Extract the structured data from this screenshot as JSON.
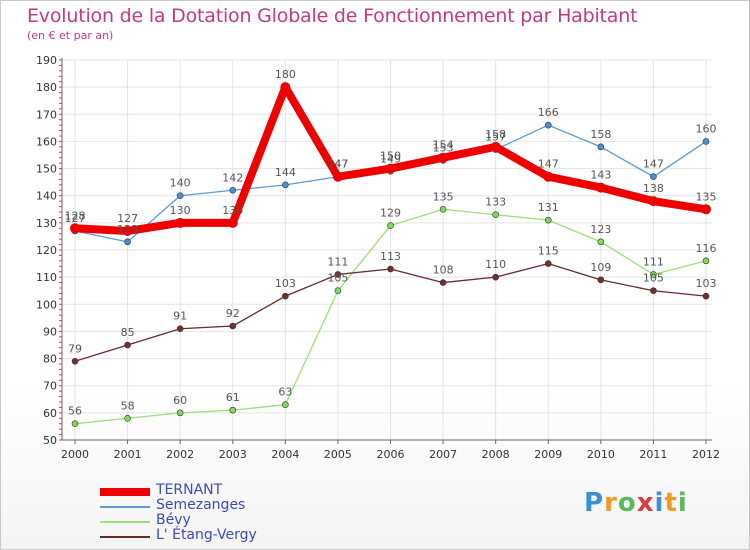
{
  "header": {
    "title": "Evolution de la Dotation Globale de Fonctionnement par Habitant",
    "subtitle": "(en € et par an)"
  },
  "chart_data": {
    "type": "line",
    "title": "Evolution de la Dotation Globale de Fonctionnement par Habitant",
    "subtitle": "(en € et par an)",
    "xlabel": "",
    "ylabel": "",
    "categories": [
      "2000",
      "2001",
      "2002",
      "2003",
      "2004",
      "2005",
      "2006",
      "2007",
      "2008",
      "2009",
      "2010",
      "2011",
      "2012"
    ],
    "ylim": [
      50,
      190
    ],
    "yticks": [
      50,
      60,
      70,
      80,
      90,
      100,
      110,
      120,
      130,
      140,
      150,
      160,
      170,
      180,
      190
    ],
    "grid": true,
    "legend_position": "bottom-left",
    "series": [
      {
        "name": "TERNANT",
        "color": "#ee0000",
        "values": [
          128,
          127,
          130,
          130,
          180,
          147,
          150,
          154,
          158,
          147,
          143,
          138,
          135
        ]
      },
      {
        "name": "Semezanges",
        "color": "#5b9bd5",
        "values": [
          127,
          123,
          140,
          142,
          144,
          147,
          149,
          153,
          157,
          166,
          158,
          147,
          160
        ]
      },
      {
        "name": "Bévy",
        "color": "#9be07a",
        "values": [
          56,
          58,
          60,
          61,
          63,
          105,
          129,
          135,
          133,
          131,
          123,
          111,
          116
        ]
      },
      {
        "name": "L' Étang-Vergy",
        "color": "#6b2a2a",
        "values": [
          79,
          85,
          91,
          92,
          103,
          111,
          113,
          108,
          110,
          115,
          109,
          105,
          103
        ]
      }
    ]
  },
  "legend": {
    "items": [
      "TERNANT",
      "Semezanges",
      "Bévy",
      "L' Étang-Vergy"
    ]
  },
  "logo": {
    "letters": [
      "P",
      "r",
      "o",
      "x",
      "i",
      "t",
      "i"
    ],
    "colors": [
      "#3b8fd6",
      "#f39a1e",
      "#5cb85c",
      "#e03a3a",
      "#3b8fd6",
      "#f39a1e",
      "#5cb85c"
    ]
  }
}
